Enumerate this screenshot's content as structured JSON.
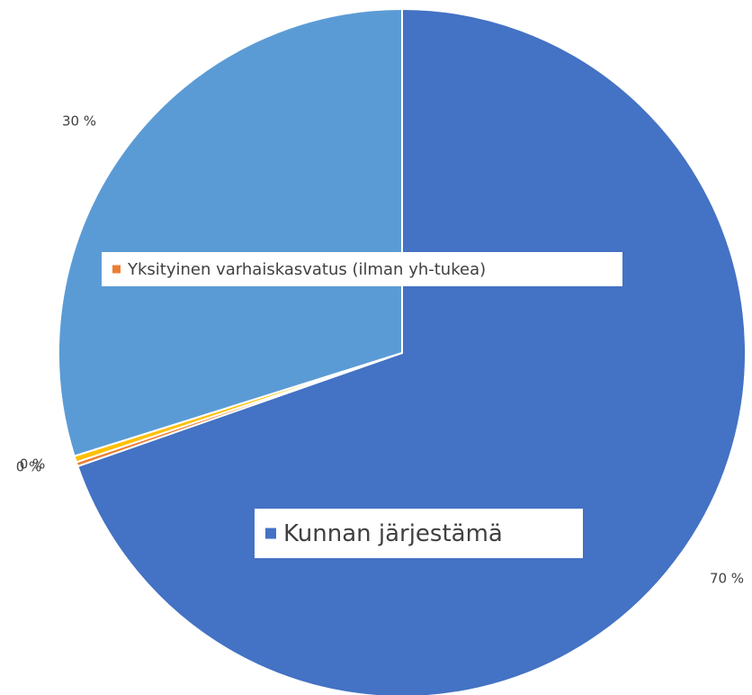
{
  "chart_data": {
    "type": "pie",
    "categories": [
      "Kunnan järjestämä",
      "Yksityinen varhaiskasvatus (ilman yh-tukea)",
      null,
      null
    ],
    "values": [
      70,
      0.2,
      0.3,
      30
    ],
    "value_labels": [
      "70 %",
      "0 %",
      "0 %",
      "30 %"
    ],
    "colors": [
      "#4472c4",
      "#ed7d31",
      "#ffc000",
      "#5b9bd5"
    ]
  }
}
